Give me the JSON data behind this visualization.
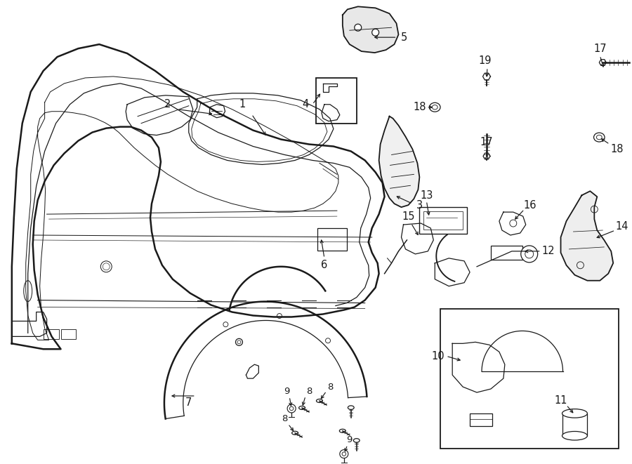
{
  "bg_color": "#ffffff",
  "line_color": "#1a1a1a",
  "fig_width": 9.0,
  "fig_height": 6.61,
  "dpi": 100,
  "text_fontsize": 10.5,
  "text_fontsize_sm": 9.5
}
